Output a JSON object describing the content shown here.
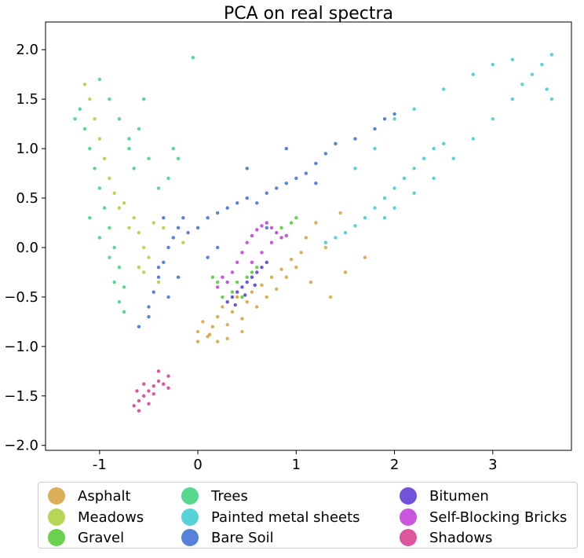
{
  "chart_data": {
    "type": "scatter",
    "title": "PCA on real spectra",
    "xlabel": "",
    "ylabel": "",
    "xlim": [
      -1.55,
      3.8
    ],
    "ylim": [
      -2.05,
      2.28
    ],
    "xticks": [
      "-1",
      "0",
      "1",
      "2",
      "3"
    ],
    "xtick_values": [
      -1,
      0,
      1,
      2,
      3
    ],
    "yticks": [
      "2.0",
      "1.5",
      "1.0",
      "0.5",
      "0.0",
      "−0.5",
      "−1.0",
      "−1.5",
      "−2.0"
    ],
    "ytick_values": [
      2.0,
      1.5,
      1.0,
      0.5,
      0.0,
      -0.5,
      -1.0,
      -1.5,
      -2.0
    ],
    "grid": false,
    "legend_position": "bottom-center",
    "series": [
      {
        "name": "Asphalt",
        "color": "#dbaf57",
        "points": [
          [
            0.0,
            -0.95
          ],
          [
            0.0,
            -0.85
          ],
          [
            0.05,
            -0.75
          ],
          [
            0.1,
            -0.9
          ],
          [
            0.15,
            -0.8
          ],
          [
            0.2,
            -0.7
          ],
          [
            0.25,
            -0.6
          ],
          [
            0.3,
            -0.78
          ],
          [
            0.35,
            -0.65
          ],
          [
            0.4,
            -0.5
          ],
          [
            0.45,
            -0.72
          ],
          [
            0.5,
            -0.55
          ],
          [
            0.55,
            -0.45
          ],
          [
            0.6,
            -0.6
          ],
          [
            0.65,
            -0.38
          ],
          [
            0.7,
            -0.5
          ],
          [
            0.75,
            -0.3
          ],
          [
            0.8,
            -0.42
          ],
          [
            0.85,
            -0.22
          ],
          [
            0.9,
            -0.3
          ],
          [
            0.95,
            -0.12
          ],
          [
            1.0,
            -0.2
          ],
          [
            1.05,
            -0.05
          ],
          [
            1.1,
            0.1
          ],
          [
            1.2,
            0.25
          ],
          [
            1.3,
            0.0
          ],
          [
            1.15,
            -0.35
          ],
          [
            1.35,
            -0.5
          ],
          [
            1.5,
            -0.25
          ],
          [
            1.7,
            -0.1
          ],
          [
            1.45,
            0.35
          ],
          [
            0.2,
            -0.95
          ],
          [
            0.12,
            -0.88
          ],
          [
            0.45,
            -0.85
          ],
          [
            0.3,
            -0.92
          ]
        ]
      },
      {
        "name": "Meadows",
        "color": "#b8d655",
        "points": [
          [
            -1.15,
            1.65
          ],
          [
            -1.1,
            1.5
          ],
          [
            -1.05,
            1.3
          ],
          [
            -1.0,
            1.1
          ],
          [
            -0.95,
            0.9
          ],
          [
            -0.9,
            0.7
          ],
          [
            -0.85,
            0.55
          ],
          [
            -0.75,
            0.45
          ],
          [
            -0.65,
            0.3
          ],
          [
            -0.6,
            0.15
          ],
          [
            -0.55,
            0.0
          ],
          [
            -0.5,
            -0.1
          ],
          [
            -0.55,
            -0.25
          ],
          [
            -0.45,
            0.25
          ],
          [
            -0.35,
            0.2
          ],
          [
            -0.25,
            0.1
          ],
          [
            -0.15,
            0.05
          ],
          [
            -0.4,
            -0.35
          ],
          [
            -0.6,
            -0.2
          ],
          [
            -0.7,
            0.2
          ],
          [
            -0.8,
            0.4
          ]
        ]
      },
      {
        "name": "Gravel",
        "color": "#6ad14f",
        "points": [
          [
            0.3,
            -0.55
          ],
          [
            0.35,
            -0.45
          ],
          [
            0.4,
            -0.35
          ],
          [
            0.5,
            -0.3
          ],
          [
            0.25,
            -0.5
          ],
          [
            0.45,
            -0.5
          ],
          [
            0.55,
            -0.25
          ],
          [
            0.6,
            -0.2
          ],
          [
            0.95,
            0.25
          ],
          [
            1.0,
            0.3
          ],
          [
            0.85,
            0.2
          ],
          [
            0.2,
            -0.35
          ],
          [
            0.15,
            -0.3
          ]
        ]
      },
      {
        "name": "Trees",
        "color": "#57d88f",
        "points": [
          [
            -1.2,
            1.4
          ],
          [
            -1.15,
            1.2
          ],
          [
            -1.1,
            1.0
          ],
          [
            -1.05,
            0.8
          ],
          [
            -1.0,
            0.6
          ],
          [
            -0.95,
            0.4
          ],
          [
            -0.9,
            0.2
          ],
          [
            -0.85,
            0.0
          ],
          [
            -0.8,
            -0.2
          ],
          [
            -0.75,
            -0.4
          ],
          [
            -0.7,
            1.0
          ],
          [
            -0.65,
            0.8
          ],
          [
            -0.6,
            1.2
          ],
          [
            -0.55,
            1.5
          ],
          [
            -0.5,
            0.9
          ],
          [
            -0.4,
            0.6
          ],
          [
            -0.3,
            0.7
          ],
          [
            -0.2,
            0.9
          ],
          [
            -1.1,
            0.3
          ],
          [
            -1.0,
            0.1
          ],
          [
            -0.9,
            -0.1
          ],
          [
            -0.85,
            -0.35
          ],
          [
            -0.8,
            -0.55
          ],
          [
            -0.75,
            -0.65
          ],
          [
            -1.0,
            1.7
          ],
          [
            -0.9,
            1.5
          ],
          [
            -0.8,
            1.3
          ],
          [
            -0.7,
            1.1
          ],
          [
            -0.25,
            1.0
          ],
          [
            -0.05,
            1.92
          ],
          [
            -1.25,
            1.3
          ]
        ]
      },
      {
        "name": "Painted metal sheets",
        "color": "#57d2d8",
        "points": [
          [
            1.3,
            0.05
          ],
          [
            1.4,
            0.1
          ],
          [
            1.5,
            0.15
          ],
          [
            1.6,
            0.22
          ],
          [
            1.7,
            0.3
          ],
          [
            1.8,
            0.4
          ],
          [
            1.9,
            0.5
          ],
          [
            2.0,
            0.6
          ],
          [
            2.1,
            0.7
          ],
          [
            2.2,
            0.8
          ],
          [
            2.3,
            0.9
          ],
          [
            2.4,
            1.0
          ],
          [
            2.5,
            1.05
          ],
          [
            1.9,
            0.3
          ],
          [
            2.0,
            0.4
          ],
          [
            2.2,
            0.55
          ],
          [
            2.4,
            0.7
          ],
          [
            2.6,
            0.9
          ],
          [
            2.8,
            1.1
          ],
          [
            3.0,
            1.3
          ],
          [
            3.2,
            1.5
          ],
          [
            3.3,
            1.65
          ],
          [
            3.4,
            1.75
          ],
          [
            3.5,
            1.85
          ],
          [
            3.6,
            1.95
          ],
          [
            3.55,
            1.6
          ],
          [
            3.6,
            1.5
          ],
          [
            2.0,
            1.3
          ],
          [
            2.2,
            1.4
          ],
          [
            2.5,
            1.6
          ],
          [
            2.8,
            1.75
          ],
          [
            3.0,
            1.85
          ],
          [
            3.2,
            1.9
          ],
          [
            1.8,
            1.0
          ],
          [
            1.6,
            0.8
          ]
        ]
      },
      {
        "name": "Bare Soil",
        "color": "#5683d9",
        "points": [
          [
            -0.5,
            -0.6
          ],
          [
            -0.45,
            -0.45
          ],
          [
            -0.4,
            -0.3
          ],
          [
            -0.35,
            -0.15
          ],
          [
            -0.3,
            0.0
          ],
          [
            -0.25,
            0.1
          ],
          [
            -0.2,
            0.2
          ],
          [
            -0.15,
            0.3
          ],
          [
            -0.1,
            0.15
          ],
          [
            0.0,
            0.2
          ],
          [
            0.1,
            0.3
          ],
          [
            0.2,
            0.35
          ],
          [
            0.3,
            0.4
          ],
          [
            0.4,
            0.45
          ],
          [
            0.5,
            0.5
          ],
          [
            0.6,
            0.45
          ],
          [
            0.7,
            0.55
          ],
          [
            0.8,
            0.6
          ],
          [
            0.9,
            0.65
          ],
          [
            1.0,
            0.7
          ],
          [
            1.1,
            0.75
          ],
          [
            1.2,
            0.85
          ],
          [
            1.3,
            0.95
          ],
          [
            1.4,
            1.05
          ],
          [
            1.6,
            1.1
          ],
          [
            1.8,
            1.2
          ],
          [
            1.9,
            1.3
          ],
          [
            2.0,
            1.35
          ],
          [
            1.2,
            0.65
          ],
          [
            -0.3,
            -0.5
          ],
          [
            -0.2,
            -0.3
          ],
          [
            -0.4,
            -0.2
          ],
          [
            -0.35,
            0.3
          ],
          [
            0.1,
            -0.1
          ],
          [
            0.2,
            0.0
          ],
          [
            -0.6,
            -0.8
          ],
          [
            -0.5,
            -0.7
          ],
          [
            0.5,
            0.8
          ],
          [
            0.9,
            1.0
          ],
          [
            0.7,
            0.2
          ]
        ]
      },
      {
        "name": "Bitumen",
        "color": "#7153d9",
        "points": [
          [
            0.3,
            -0.55
          ],
          [
            0.35,
            -0.5
          ],
          [
            0.4,
            -0.45
          ],
          [
            0.45,
            -0.4
          ],
          [
            0.5,
            -0.35
          ],
          [
            0.55,
            -0.3
          ],
          [
            0.6,
            -0.25
          ],
          [
            0.65,
            -0.2
          ],
          [
            0.7,
            -0.15
          ],
          [
            0.38,
            -0.58
          ],
          [
            0.48,
            -0.48
          ],
          [
            0.58,
            -0.38
          ]
        ]
      },
      {
        "name": "Self-Blocking Bricks",
        "color": "#c956dc",
        "points": [
          [
            0.3,
            -0.35
          ],
          [
            0.35,
            -0.25
          ],
          [
            0.4,
            -0.15
          ],
          [
            0.45,
            -0.05
          ],
          [
            0.5,
            0.05
          ],
          [
            0.55,
            0.12
          ],
          [
            0.6,
            0.18
          ],
          [
            0.65,
            0.22
          ],
          [
            0.7,
            0.25
          ],
          [
            0.75,
            0.2
          ],
          [
            0.8,
            0.15
          ],
          [
            0.85,
            0.1
          ],
          [
            0.9,
            0.12
          ],
          [
            0.55,
            -0.15
          ],
          [
            0.65,
            -0.05
          ],
          [
            0.75,
            0.05
          ],
          [
            0.2,
            -0.4
          ],
          [
            0.25,
            -0.3
          ]
        ]
      },
      {
        "name": "Shadows",
        "color": "#dc569d",
        "points": [
          [
            -0.65,
            -1.6
          ],
          [
            -0.6,
            -1.55
          ],
          [
            -0.55,
            -1.5
          ],
          [
            -0.5,
            -1.45
          ],
          [
            -0.45,
            -1.4
          ],
          [
            -0.4,
            -1.35
          ],
          [
            -0.35,
            -1.38
          ],
          [
            -0.3,
            -1.42
          ],
          [
            -0.6,
            -1.65
          ],
          [
            -0.5,
            -1.58
          ],
          [
            -0.45,
            -1.48
          ],
          [
            -0.55,
            -1.38
          ],
          [
            -0.62,
            -1.45
          ],
          [
            -0.4,
            -1.25
          ],
          [
            -0.3,
            -1.3
          ]
        ]
      }
    ]
  }
}
